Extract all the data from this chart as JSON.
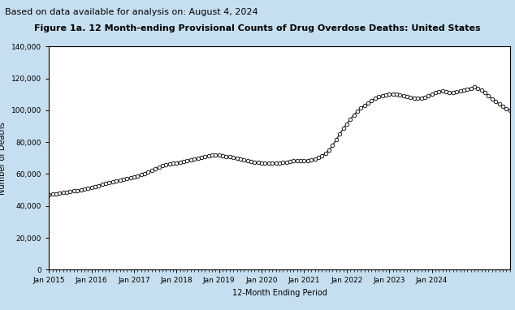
{
  "title": "Figure 1a. 12 Month-ending Provisional Counts of Drug Overdose Deaths: United States",
  "suptitle": "Based on data available for analysis on: August 4, 2024",
  "xlabel": "12-Month Ending Period",
  "ylabel": "Number of Deaths",
  "ylim": [
    0,
    140000
  ],
  "yticks": [
    0,
    20000,
    40000,
    60000,
    80000,
    100000,
    120000,
    140000
  ],
  "background_color": "#c6dff0",
  "plot_bg_color": "#ffffff",
  "line_color": "#1a1a1a",
  "marker_facecolor": "#ffffff",
  "marker_edgecolor": "#1a1a1a",
  "values": [
    47000,
    47300,
    47700,
    48100,
    48400,
    48700,
    49100,
    49400,
    49700,
    50100,
    50500,
    51000,
    51500,
    52100,
    52700,
    53400,
    54100,
    54700,
    55200,
    55700,
    56200,
    56700,
    57200,
    57700,
    58200,
    58800,
    59500,
    60300,
    61200,
    62200,
    63200,
    64200,
    65200,
    65800,
    66300,
    66700,
    67100,
    67500,
    68000,
    68500,
    69000,
    69500,
    70000,
    70500,
    71000,
    71400,
    71700,
    71900,
    71800,
    71500,
    71100,
    70700,
    70200,
    69700,
    69200,
    68700,
    68300,
    67900,
    67600,
    67300,
    67000,
    66800,
    66700,
    66700,
    66800,
    67000,
    67200,
    67500,
    67900,
    68200,
    68400,
    68500,
    68500,
    68600,
    68900,
    69400,
    70200,
    71500,
    73000,
    75000,
    78000,
    81500,
    85000,
    88500,
    91500,
    94500,
    97000,
    99500,
    101500,
    103000,
    104500,
    106000,
    107500,
    108500,
    109200,
    109800,
    110200,
    110300,
    110100,
    109700,
    109200,
    108700,
    108200,
    107800,
    107600,
    107800,
    108200,
    109000,
    110000,
    111000,
    111800,
    112000,
    111700,
    111300,
    111200,
    111500,
    112000,
    112500,
    113000,
    113800,
    114500,
    113800,
    112500,
    111000,
    109000,
    107000,
    105500,
    104000,
    102500,
    101000,
    100000
  ],
  "xtick_labels": [
    "Jan 2015",
    "Jan 2016",
    "Jan 2017",
    "Jan 2018",
    "Jan 2019",
    "Jan 2020",
    "Jan 2021",
    "Jan 2022",
    "Jan 2023",
    "Jan 2024"
  ],
  "xtick_positions": [
    0,
    12,
    24,
    36,
    48,
    60,
    72,
    84,
    96,
    108
  ],
  "title_fontsize": 8,
  "suptitle_fontsize": 8,
  "axis_label_fontsize": 7,
  "tick_fontsize": 6.5
}
